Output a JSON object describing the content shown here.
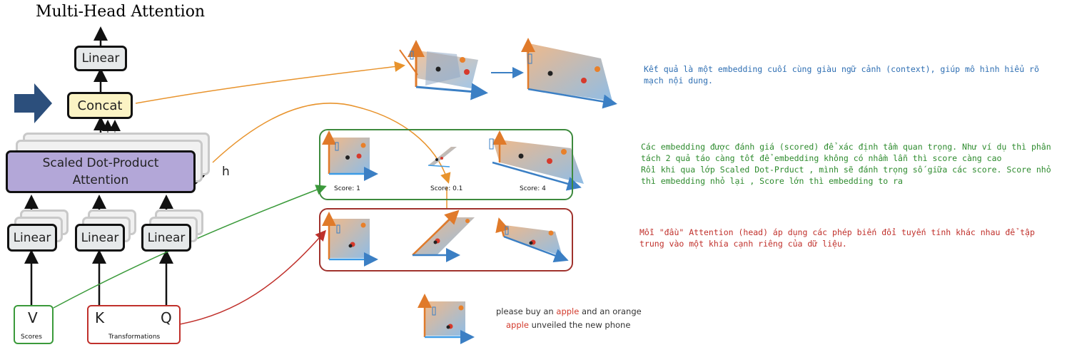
{
  "diagram": {
    "title": "Multi-Head Attention",
    "blocks": {
      "linear_top": "Linear",
      "concat": "Concat",
      "sdpa_line1": "Scaled Dot-Product",
      "sdpa_line2": "Attention",
      "h_label": "h",
      "linear_v": "Linear",
      "linear_k": "Linear",
      "linear_q": "Linear"
    },
    "inputs": {
      "v": "V",
      "scores_label": "Scores",
      "k": "K",
      "q": "Q",
      "transformations_label": "Transformations"
    }
  },
  "scores": {
    "s1": "Score: 1",
    "s2": "Score: 0.1",
    "s3": "Score: 4"
  },
  "notes": {
    "blue": "Kết quả là một embedding cuối cùng giàu ngữ cảnh (context), giúp mô hình hiểu rõ mạch nội dung.",
    "green_lines": [
      "Các embedding được đánh giá (scored) để xác định tầm quan trọng. Như ví dụ thì phân tách 2 quả táo càng tốt để embedding không có nhầm lẫn thì score càng cao",
      "Rồi khi qua lớp Scaled Dot-Prduct , mình sẽ đánh trọng số giữa các score. Score nhỏ thì embedding nhỏ lại , Score lớn thì embedding to ra"
    ],
    "red": "Mỗi \"đầu\" Attention (head) áp dụng các phép biến đổi tuyến tính khác nhau để tập trung vào một khía cạnh riêng của dữ liệu."
  },
  "sentences": {
    "s1_pre": "please buy an ",
    "s1_hl": "apple",
    "s1_post": " and an orange",
    "s2_hl": "apple",
    "s2_post": " unveiled the new phone"
  },
  "colors": {
    "blue_note": "#2f6fb3",
    "green_note": "#2e8b2e",
    "red_note": "#c0302b",
    "orange_arrow": "#e8932c",
    "green_arrow": "#3a9a3a",
    "red_arrow": "#c0302b",
    "concat_fill": "#fbf3c4",
    "sdpa_fill": "#b3a7d8",
    "linear_fill": "#e6e9ea",
    "big_arrow": "#2c4f7c"
  }
}
